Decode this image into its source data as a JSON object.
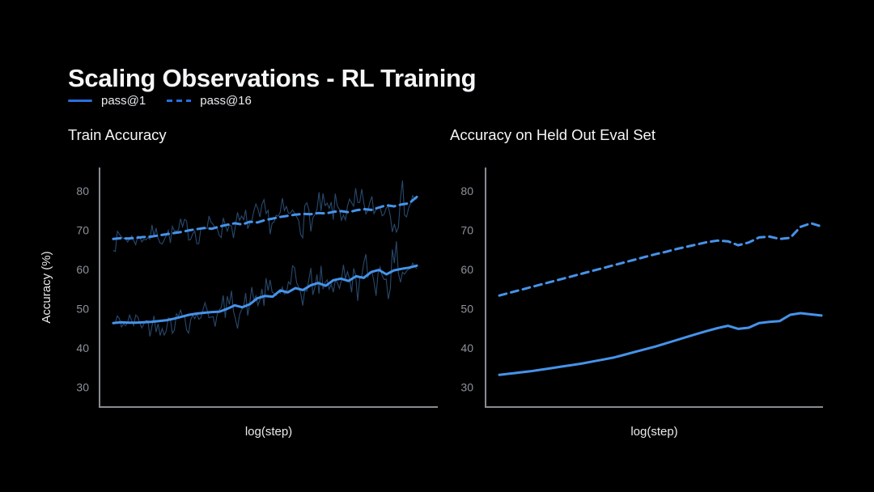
{
  "header": {
    "title": "Scaling Observations - RL Training"
  },
  "legend": {
    "position": "top-left, below title",
    "items": [
      {
        "label": "pass@1",
        "style": "solid"
      },
      {
        "label": "pass@16",
        "style": "dashed"
      }
    ]
  },
  "colors": {
    "background": "#000000",
    "accent_line": "#4693ea",
    "legend_accent": "#2b6fe0",
    "raw_line": "#2a4d73",
    "axis": "#878c93",
    "tick_text": "#8d929a",
    "title_text": "#f5f6f7",
    "label_text": "#e9ebee"
  },
  "chart_data": [
    {
      "type": "line",
      "title": "Train Accuracy",
      "xlabel": "log(step)",
      "ylabel": "Accuracy (%)",
      "x_axis": "unlabeled log-scale training steps, no tick labels",
      "ylim": [
        25,
        86
      ],
      "yticks": [
        30,
        40,
        50,
        60,
        70,
        80
      ],
      "grid": false,
      "series": [
        {
          "name": "pass@1",
          "style": "solid",
          "values": [
            46.4,
            46.6,
            46.5,
            46.5,
            46.6,
            46.7,
            46.9,
            47.1,
            47.5,
            48.0,
            48.5,
            48.8,
            49.0,
            49.2,
            49.3,
            50.0,
            50.9,
            50.4,
            51.2,
            52.7,
            53.3,
            53.1,
            54.7,
            54.2,
            55.3,
            54.8,
            56.0,
            56.6,
            55.9,
            57.3,
            57.7,
            57.1,
            58.3,
            57.9,
            59.4,
            59.9,
            58.8,
            59.8,
            60.2,
            60.5,
            61.0
          ],
          "raw_overlay": {
            "seed": 42,
            "amp_start": 2.0,
            "amp_end": 4.3,
            "persistence": 0.3,
            "points": 150
          }
        },
        {
          "name": "pass@16",
          "style": "dashed",
          "values": [
            67.8,
            68.0,
            67.9,
            68.1,
            68.3,
            68.4,
            68.7,
            69.0,
            69.3,
            69.6,
            70.0,
            70.3,
            70.6,
            70.4,
            71.0,
            71.4,
            71.8,
            71.5,
            72.2,
            72.0,
            72.6,
            73.0,
            73.4,
            73.7,
            74.0,
            74.2,
            74.1,
            74.4,
            74.3,
            74.7,
            74.9,
            74.6,
            75.1,
            75.4,
            75.2,
            75.8,
            76.4,
            76.1,
            76.6,
            76.9,
            78.5
          ],
          "raw_overlay": {
            "seed": 7,
            "amp_start": 1.8,
            "amp_end": 3.6,
            "persistence": 0.3,
            "points": 150
          }
        }
      ]
    },
    {
      "type": "line",
      "title": "Accuracy on Held Out Eval Set",
      "xlabel": "log(step)",
      "ylabel": "",
      "x_axis": "unlabeled log-scale training steps, no tick labels",
      "ylim": [
        25,
        86
      ],
      "yticks": [
        30,
        40,
        50,
        60,
        70,
        80
      ],
      "grid": false,
      "series": [
        {
          "name": "pass@1",
          "style": "solid",
          "values": [
            33.2,
            33.5,
            33.8,
            34.1,
            34.5,
            34.9,
            35.3,
            35.7,
            36.1,
            36.6,
            37.1,
            37.6,
            38.3,
            39.0,
            39.7,
            40.4,
            41.2,
            42.0,
            42.8,
            43.6,
            44.4,
            45.1,
            45.7,
            44.9,
            45.2,
            46.4,
            46.7,
            46.9,
            48.5,
            48.9,
            48.6,
            48.3
          ]
        },
        {
          "name": "pass@16",
          "style": "dashed",
          "values": [
            53.4,
            54.1,
            54.8,
            55.5,
            56.2,
            56.9,
            57.6,
            58.3,
            59.0,
            59.7,
            60.4,
            61.1,
            61.8,
            62.5,
            63.2,
            63.9,
            64.5,
            65.2,
            65.8,
            66.4,
            67.0,
            67.4,
            67.2,
            66.2,
            66.9,
            68.2,
            68.4,
            67.8,
            68.1,
            70.9,
            71.8,
            71.0
          ]
        }
      ]
    }
  ]
}
